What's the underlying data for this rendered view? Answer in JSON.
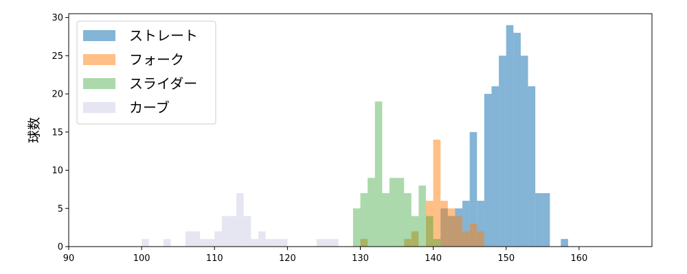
{
  "chart_data": {
    "type": "histogram",
    "title": "",
    "xlabel": "",
    "ylabel": "球数",
    "xlim": [
      90,
      170
    ],
    "ylim": [
      0,
      30.5
    ],
    "xticks": [
      90,
      100,
      110,
      120,
      130,
      140,
      150,
      160
    ],
    "yticks": [
      0,
      5,
      10,
      15,
      20,
      25,
      30
    ],
    "bin_width": 1,
    "grid": false,
    "legend_position": "top-left",
    "series": [
      {
        "name": "ストレート",
        "color": "#1f77b4",
        "opacity": 0.55,
        "bins": [
          [
            141,
            5
          ],
          [
            142,
            4
          ],
          [
            143,
            5
          ],
          [
            144,
            6
          ],
          [
            145,
            15
          ],
          [
            146,
            6
          ],
          [
            147,
            20
          ],
          [
            148,
            21
          ],
          [
            149,
            25
          ],
          [
            150,
            29
          ],
          [
            151,
            28
          ],
          [
            152,
            25
          ],
          [
            153,
            21
          ],
          [
            154,
            7
          ],
          [
            155,
            7
          ],
          [
            157.5,
            1
          ]
        ]
      },
      {
        "name": "フォーク",
        "color": "#ff7f0e",
        "opacity": 0.5,
        "bins": [
          [
            130,
            1
          ],
          [
            136,
            1
          ],
          [
            137,
            2
          ],
          [
            139,
            6
          ],
          [
            140,
            14
          ],
          [
            141,
            6
          ],
          [
            142,
            5
          ],
          [
            143,
            4
          ],
          [
            144,
            2
          ],
          [
            145,
            3
          ],
          [
            146,
            2
          ]
        ]
      },
      {
        "name": "スライダー",
        "color": "#2ca02c",
        "opacity": 0.4,
        "bins": [
          [
            129,
            5
          ],
          [
            130,
            7
          ],
          [
            131,
            9
          ],
          [
            132,
            19
          ],
          [
            133,
            7
          ],
          [
            134,
            9
          ],
          [
            135,
            9
          ],
          [
            136,
            7
          ],
          [
            137,
            4
          ],
          [
            138,
            8
          ],
          [
            139,
            4
          ],
          [
            140,
            1
          ]
        ]
      },
      {
        "name": "カーブ",
        "color": "#c8c8e2",
        "opacity": 0.45,
        "bins": [
          [
            100,
            1
          ],
          [
            103,
            1
          ],
          [
            106,
            2
          ],
          [
            107,
            2
          ],
          [
            108,
            1
          ],
          [
            109,
            1
          ],
          [
            110,
            2
          ],
          [
            111,
            4
          ],
          [
            112,
            4
          ],
          [
            113,
            7
          ],
          [
            114,
            4
          ],
          [
            115,
            1
          ],
          [
            116,
            2
          ],
          [
            117,
            1
          ],
          [
            118,
            1
          ],
          [
            119,
            1
          ],
          [
            124,
            1
          ],
          [
            125,
            1
          ],
          [
            126,
            1
          ]
        ]
      }
    ]
  }
}
